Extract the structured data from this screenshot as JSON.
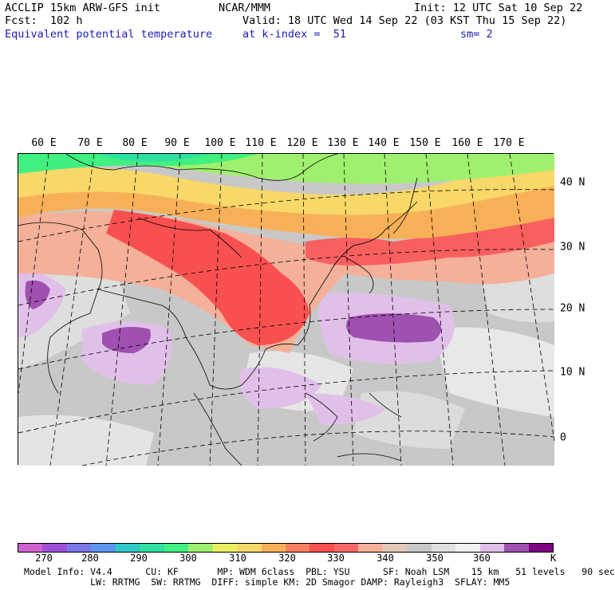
{
  "header": {
    "model": "ACCLIP 15km ARW-GFS init",
    "org": "NCAR/MMM",
    "init": "Init: 12 UTC Sat 10 Sep 22",
    "fcst": "Fcst:  102 h",
    "valid": "Valid: 18 UTC Wed 14 Sep 22 (03 KST Thu 15 Sep 22)",
    "field": "Equivalent potential temperature",
    "level": "at k-index =  51",
    "smooth": "sm= 2"
  },
  "map": {
    "lon_labels": [
      "60 E",
      "70 E",
      "80 E",
      "90 E",
      "100 E",
      "110 E",
      "120 E",
      "130 E",
      "140 E",
      "150 E",
      "160 E",
      "170 E"
    ],
    "lat_labels": [
      "40 N",
      "30 N",
      "20 N",
      "10 N",
      "0"
    ]
  },
  "colorbar": {
    "colors": [
      "#d060d0",
      "#a050d8",
      "#7878e8",
      "#5a96ee",
      "#30c8c8",
      "#30e0a0",
      "#40f080",
      "#a0f070",
      "#e8f060",
      "#f8d868",
      "#f8b058",
      "#f88060",
      "#f85050",
      "#f86868",
      "#f4b098",
      "#e4c8b8",
      "#c8c8c8",
      "#e0e0e0",
      "#f0f0f0",
      "#e0c0e8",
      "#a050b0",
      "#800080"
    ],
    "tick_labels": [
      "270",
      "280",
      "290",
      "300",
      "310",
      "320",
      "330",
      "340",
      "350",
      "360"
    ],
    "unit": "K"
  },
  "footer": {
    "line1": "Model Info: V4.4      CU: KF       MP: WDM 6class  PBL: YSU      SF: Noah LSM    15 km   51 levels   90 sec",
    "line2": "            LW: RRTMG  SW: RRTMG  DIFF: simple KM: 2D Smagor DAMP: Rayleigh3  SFLAY: MM5"
  }
}
